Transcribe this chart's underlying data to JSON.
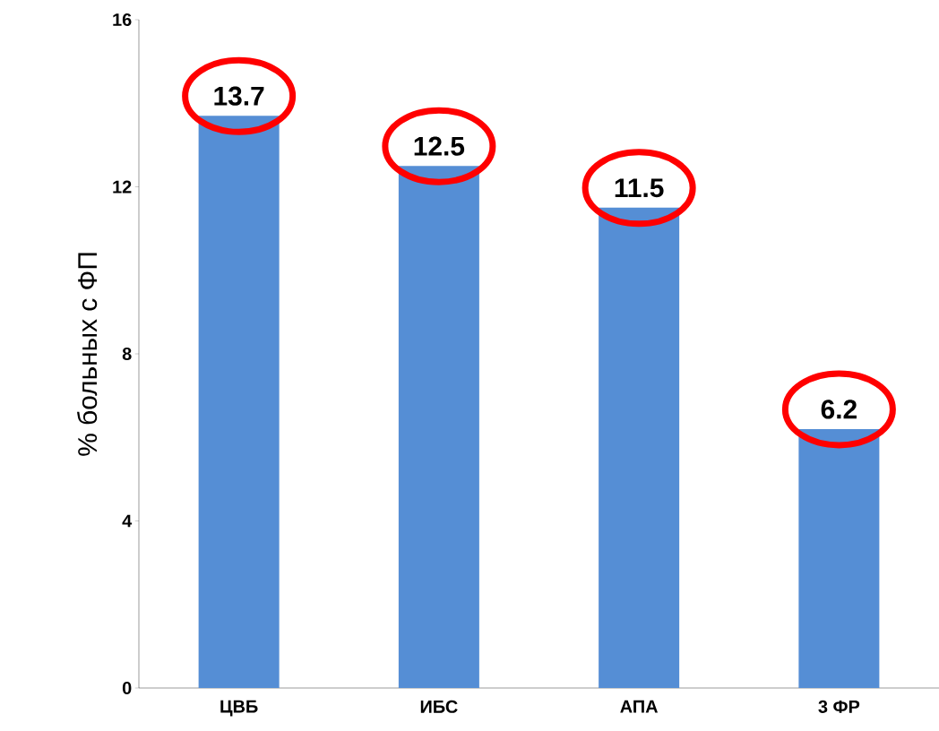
{
  "chart_data": {
    "type": "bar",
    "ylabel": "% больных с ФП",
    "categories": [
      "ЦВБ",
      "ИБС",
      "АПА",
      "3 ФР"
    ],
    "values": [
      13.7,
      12.5,
      11.5,
      6.2
    ],
    "color": "#558ed5",
    "ylim": [
      0,
      16
    ],
    "yticks": [
      0,
      4,
      8,
      12,
      16
    ],
    "data_labels": true,
    "grid": false
  }
}
